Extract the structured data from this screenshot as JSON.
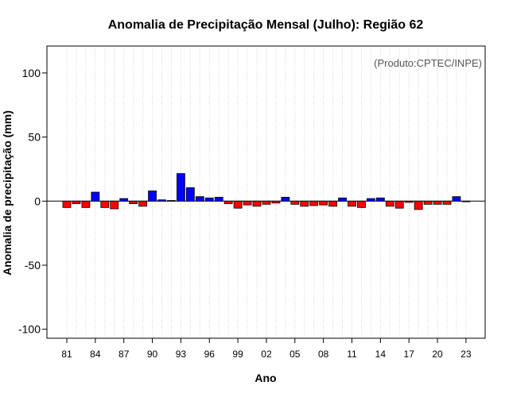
{
  "chart_data": {
    "type": "bar",
    "title": "Anomalia de Precipitação Mensal (Julho): Região 62",
    "xlabel": "Ano",
    "ylabel": "Anomalia de precipitação (mm)",
    "annotation": "(Produto:CPTEC/INPE)",
    "ylim": [
      -107,
      121
    ],
    "yticks": [
      -100,
      -50,
      0,
      50,
      100
    ],
    "x_tick_labels": [
      "81",
      "84",
      "87",
      "90",
      "93",
      "96",
      "99",
      "02",
      "05",
      "08",
      "11",
      "14",
      "17",
      "20",
      "23"
    ],
    "x_tick_years": [
      1981,
      1984,
      1987,
      1990,
      1993,
      1996,
      1999,
      2002,
      2005,
      2008,
      2011,
      2014,
      2017,
      2020,
      2023
    ],
    "grid": true,
    "positive_color": "#0000ff",
    "negative_color": "#ff0000",
    "categories": [
      1981,
      1982,
      1983,
      1984,
      1985,
      1986,
      1987,
      1988,
      1989,
      1990,
      1991,
      1992,
      1993,
      1994,
      1995,
      1996,
      1997,
      1998,
      1999,
      2000,
      2001,
      2002,
      2003,
      2004,
      2005,
      2006,
      2007,
      2008,
      2009,
      2010,
      2011,
      2012,
      2013,
      2014,
      2015,
      2016,
      2017,
      2018,
      2019,
      2020,
      2021,
      2022,
      2023
    ],
    "values": [
      -5,
      -2,
      -5,
      7,
      -5,
      -6,
      2,
      -2,
      -4,
      8,
      1,
      0.5,
      21.5,
      10.5,
      3.5,
      2.5,
      3,
      -2,
      -5.5,
      -3,
      -4,
      -2.5,
      -1.5,
      3,
      -2.5,
      -4,
      -3.5,
      -3,
      -4,
      2.5,
      -4,
      -5,
      2,
      2.5,
      -4,
      -5.5,
      -1,
      -6.5,
      -2.5,
      -2.5,
      -2.5,
      3.5,
      -0.5
    ]
  }
}
